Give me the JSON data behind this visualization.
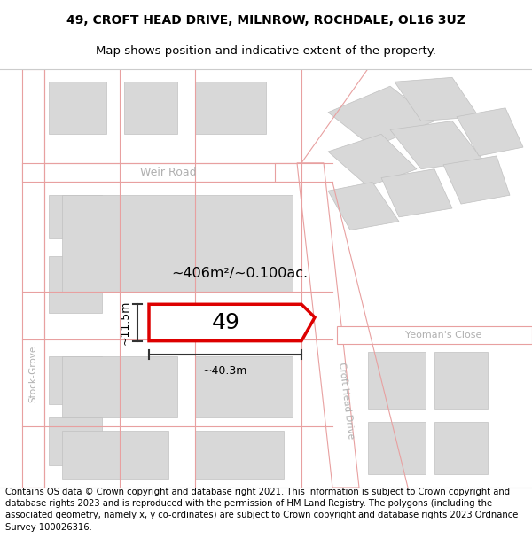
{
  "title_line1": "49, CROFT HEAD DRIVE, MILNROW, ROCHDALE, OL16 3UZ",
  "title_line2": "Map shows position and indicative extent of the property.",
  "footer_text": "Contains OS data © Crown copyright and database right 2021. This information is subject to Crown copyright and database rights 2023 and is reproduced with the permission of HM Land Registry. The polygons (including the associated geometry, namely x, y co-ordinates) are subject to Crown copyright and database rights 2023 Ordnance Survey 100026316.",
  "map_bg": "#f2f2f2",
  "road_fill": "#ffffff",
  "building_fill": "#d8d8d8",
  "road_line_color": "#e8a0a0",
  "dim_line_color": "#333333",
  "plot_line_color": "#dd0000",
  "plot_fill": "#ffffff",
  "street_label_color": "#b0b0b0",
  "plot_label": "49",
  "area_label": "~406m²/~0.100ac.",
  "width_label": "~40.3m",
  "height_label": "~11.5m",
  "title_fontsize": 10,
  "footer_fontsize": 7.5,
  "weir_road_label": "Weir Road",
  "stock_grove_label": "Stock-Grove",
  "croft_head_label": "Croft Head Drive",
  "yeomans_label": "Yeoman's Close"
}
